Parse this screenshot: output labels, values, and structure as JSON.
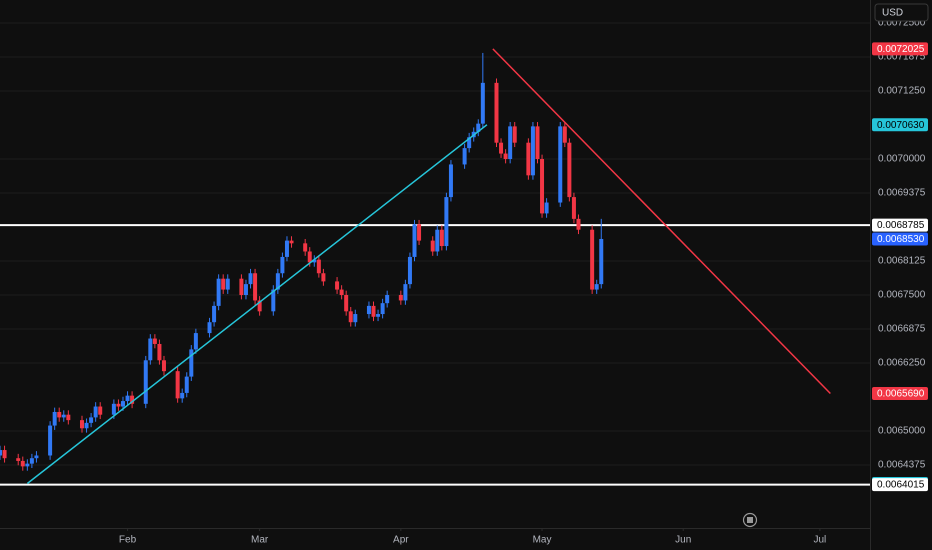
{
  "chart_data": {
    "type": "candlestick",
    "currency": "USD",
    "x": [
      4,
      5,
      8,
      9,
      10,
      11,
      12,
      15,
      16,
      17,
      18,
      19,
      22,
      23,
      24,
      25,
      26,
      29,
      30,
      31,
      32,
      33,
      36,
      37,
      38,
      39,
      40,
      43,
      44,
      45,
      46,
      47,
      50,
      51,
      52,
      53,
      54,
      57,
      58,
      59,
      60,
      61,
      64,
      65,
      66,
      67,
      68,
      71,
      72,
      73,
      74,
      75,
      78,
      79,
      80,
      81,
      82,
      85,
      86,
      87,
      88,
      89,
      92,
      93,
      94,
      95,
      96,
      99,
      100,
      101,
      102,
      103,
      106,
      107,
      108,
      109,
      110,
      113,
      114,
      115,
      116,
      117,
      120,
      121,
      122,
      123,
      124,
      127,
      128,
      129,
      130,
      131,
      134,
      135,
      136
    ],
    "open": [
      0.006455,
      0.006465,
      0.00645,
      0.006445,
      0.006435,
      0.00644,
      0.00645,
      0.006455,
      0.00651,
      0.006535,
      0.006525,
      0.00653,
      0.00652,
      0.006505,
      0.006515,
      0.006525,
      0.006545,
      0.00653,
      0.00655,
      0.006545,
      0.006555,
      0.006565,
      0.00655,
      0.00663,
      0.00667,
      0.00666,
      0.00663,
      0.00661,
      0.00656,
      0.00657,
      0.0066,
      0.00665,
      0.00668,
      0.0067,
      0.00673,
      0.00678,
      0.00676,
      0.00678,
      0.00675,
      0.00677,
      0.00679,
      0.00674,
      0.00672,
      0.00676,
      0.00679,
      0.00682,
      0.00685,
      0.006845,
      0.00683,
      0.00681,
      0.006815,
      0.00679,
      0.006775,
      0.00676,
      0.00675,
      0.00672,
      0.0067,
      0.006715,
      0.00673,
      0.00671,
      0.006715,
      0.006735,
      0.00675,
      0.00674,
      0.00677,
      0.00682,
      0.00688,
      0.00685,
      0.00683,
      0.00687,
      0.00684,
      0.00693,
      0.00699,
      0.00702,
      0.00704,
      0.00705,
      0.007065,
      0.00714,
      0.00703,
      0.00701,
      0.007,
      0.00706,
      0.00703,
      0.00697,
      0.00706,
      0.007,
      0.0069,
      0.00692,
      0.00706,
      0.00703,
      0.00693,
      0.00689,
      0.00687,
      0.00676,
      0.00677
    ],
    "high": [
      0.006473,
      0.006473,
      0.006458,
      0.006453,
      0.006448,
      0.006458,
      0.006463,
      0.006518,
      0.006543,
      0.006543,
      0.006538,
      0.006538,
      0.006528,
      0.006523,
      0.006533,
      0.006553,
      0.006553,
      0.006558,
      0.006558,
      0.006563,
      0.006573,
      0.006573,
      0.006638,
      0.006678,
      0.006678,
      0.006668,
      0.006638,
      0.006618,
      0.006578,
      0.006608,
      0.006658,
      0.006688,
      0.006708,
      0.006738,
      0.006788,
      0.006788,
      0.006788,
      0.006788,
      0.006778,
      0.006798,
      0.006798,
      0.006748,
      0.006768,
      0.006798,
      0.006828,
      0.006858,
      0.006858,
      0.006853,
      0.006838,
      0.006823,
      0.006823,
      0.006798,
      0.006783,
      0.006768,
      0.006758,
      0.006728,
      0.006723,
      0.006738,
      0.006738,
      0.006723,
      0.006743,
      0.006758,
      0.006758,
      0.006778,
      0.006828,
      0.006888,
      0.006888,
      0.006858,
      0.006878,
      0.006878,
      0.006938,
      0.006998,
      0.007028,
      0.007048,
      0.007058,
      0.007073,
      0.007195,
      0.007148,
      0.007038,
      0.007018,
      0.007068,
      0.007068,
      0.007038,
      0.007068,
      0.007068,
      0.007008,
      0.006928,
      0.007068,
      0.007068,
      0.007038,
      0.006938,
      0.006898,
      0.006878,
      0.006778,
      0.00689
    ],
    "low": [
      0.006447,
      0.006442,
      0.006437,
      0.006427,
      0.006427,
      0.006432,
      0.006442,
      0.006447,
      0.006502,
      0.006517,
      0.006517,
      0.006512,
      0.006497,
      0.006497,
      0.006507,
      0.006517,
      0.006522,
      0.006522,
      0.006537,
      0.006537,
      0.006547,
      0.006542,
      0.006542,
      0.006622,
      0.006652,
      0.006622,
      0.006602,
      0.006552,
      0.006552,
      0.006562,
      0.006592,
      0.006642,
      0.006672,
      0.006692,
      0.006722,
      0.006752,
      0.006752,
      0.006742,
      0.006742,
      0.006762,
      0.006732,
      0.006712,
      0.006712,
      0.006752,
      0.006782,
      0.006812,
      0.006837,
      0.006822,
      0.006802,
      0.006802,
      0.006782,
      0.006767,
      0.006752,
      0.006742,
      0.006712,
      0.006692,
      0.006692,
      0.006707,
      0.006702,
      0.006702,
      0.006707,
      0.006727,
      0.006732,
      0.006732,
      0.006762,
      0.006812,
      0.006842,
      0.006822,
      0.006822,
      0.006832,
      0.006832,
      0.006922,
      0.006982,
      0.007012,
      0.007032,
      0.007042,
      0.007057,
      0.007022,
      0.007002,
      0.006992,
      0.006992,
      0.007022,
      0.006962,
      0.006962,
      0.006992,
      0.006892,
      0.006892,
      0.006912,
      0.007022,
      0.006922,
      0.006882,
      0.006862,
      0.006752,
      0.006752,
      0.006762
    ],
    "close": [
      0.006465,
      0.00645,
      0.006445,
      0.006435,
      0.00644,
      0.00645,
      0.006455,
      0.00651,
      0.006535,
      0.006525,
      0.00653,
      0.00652,
      0.006505,
      0.006515,
      0.006525,
      0.006545,
      0.00653,
      0.00655,
      0.006545,
      0.006555,
      0.006565,
      0.00655,
      0.00663,
      0.00667,
      0.00666,
      0.00663,
      0.00661,
      0.00656,
      0.00657,
      0.0066,
      0.00665,
      0.00668,
      0.0067,
      0.00673,
      0.00678,
      0.00676,
      0.00678,
      0.00675,
      0.00677,
      0.00679,
      0.00674,
      0.00672,
      0.00676,
      0.00679,
      0.00682,
      0.00685,
      0.006845,
      0.00683,
      0.00681,
      0.006815,
      0.00679,
      0.006775,
      0.00676,
      0.00675,
      0.00672,
      0.0067,
      0.006715,
      0.00673,
      0.00671,
      0.006715,
      0.006735,
      0.00675,
      0.00674,
      0.00677,
      0.00682,
      0.00688,
      0.00685,
      0.00683,
      0.00687,
      0.00684,
      0.00693,
      0.00699,
      0.00702,
      0.00704,
      0.00705,
      0.007065,
      0.00714,
      0.00703,
      0.00701,
      0.007,
      0.00706,
      0.00703,
      0.00697,
      0.00706,
      0.007,
      0.0069,
      0.00692,
      0.00706,
      0.00703,
      0.00693,
      0.00689,
      0.00687,
      0.00676,
      0.00677,
      0.006853
    ],
    "up_color": "#3179f5",
    "down_color": "#f23645",
    "xlim": [
      4,
      195
    ],
    "xticks": [
      {
        "value": 32,
        "label": "Feb"
      },
      {
        "value": 61,
        "label": "Mar"
      },
      {
        "value": 92,
        "label": "Apr"
      },
      {
        "value": 123,
        "label": "May"
      },
      {
        "value": 154,
        "label": "Jun"
      },
      {
        "value": 184,
        "label": "Jul"
      }
    ],
    "ylim": [
      0.0063217,
      0.0072923
    ],
    "yticks": [
      {
        "value": 0.00725,
        "label": "0.0072500"
      },
      0.0071875,
      {
        "value": 0.007125,
        "label": "0.0071250"
      },
      {
        "value": 0.007,
        "label": "0.0070000"
      },
      0.0069375,
      0.0068125,
      {
        "value": 0.00675,
        "label": "0.0067500"
      },
      0.0066875,
      {
        "value": 0.006625,
        "label": "0.0066250"
      },
      {
        "value": 0.0065,
        "label": "0.0065000"
      },
      0.0064375
    ],
    "grid": true,
    "horizontal_lines": [
      {
        "value": 0.0068785,
        "color": "#ffffff"
      },
      {
        "value": 0.0064015,
        "color": "#ffffff"
      }
    ],
    "trend_lines": [
      {
        "x": [
          10,
          110.9
        ],
        "y": [
          0.0064035,
          0.007063
        ],
        "color": "#26c6da"
      },
      {
        "x": [
          112.2,
          186.3
        ],
        "y": [
          0.0072025,
          0.006569
        ],
        "color": "#f23645"
      }
    ],
    "price_labels": [
      {
        "value": 0.0072025,
        "label": "0.0072025",
        "color": "#f23645",
        "text_color": "#ffffff"
      },
      {
        "value": 0.007063,
        "label": "0.0070630",
        "color": "#26c6da",
        "text_color": "#000000"
      },
      {
        "value": 0.0068785,
        "label": "0.0068785",
        "color": "#ffffff",
        "text_color": "#000000"
      },
      {
        "value": 0.006853,
        "label": "0.0068530",
        "color": "#2962ff",
        "text_color": "#ffffff"
      },
      {
        "value": 0.006569,
        "label": "0.0065690",
        "color": "#f23645",
        "text_color": "#ffffff"
      },
      {
        "value": 0.0064035,
        "label": "0.0064035",
        "color": "#26c6da",
        "text_color": "#000000"
      },
      {
        "value": 0.0064015,
        "label": "0.0064015",
        "color": "#ffffff",
        "text_color": "#000000"
      }
    ]
  }
}
